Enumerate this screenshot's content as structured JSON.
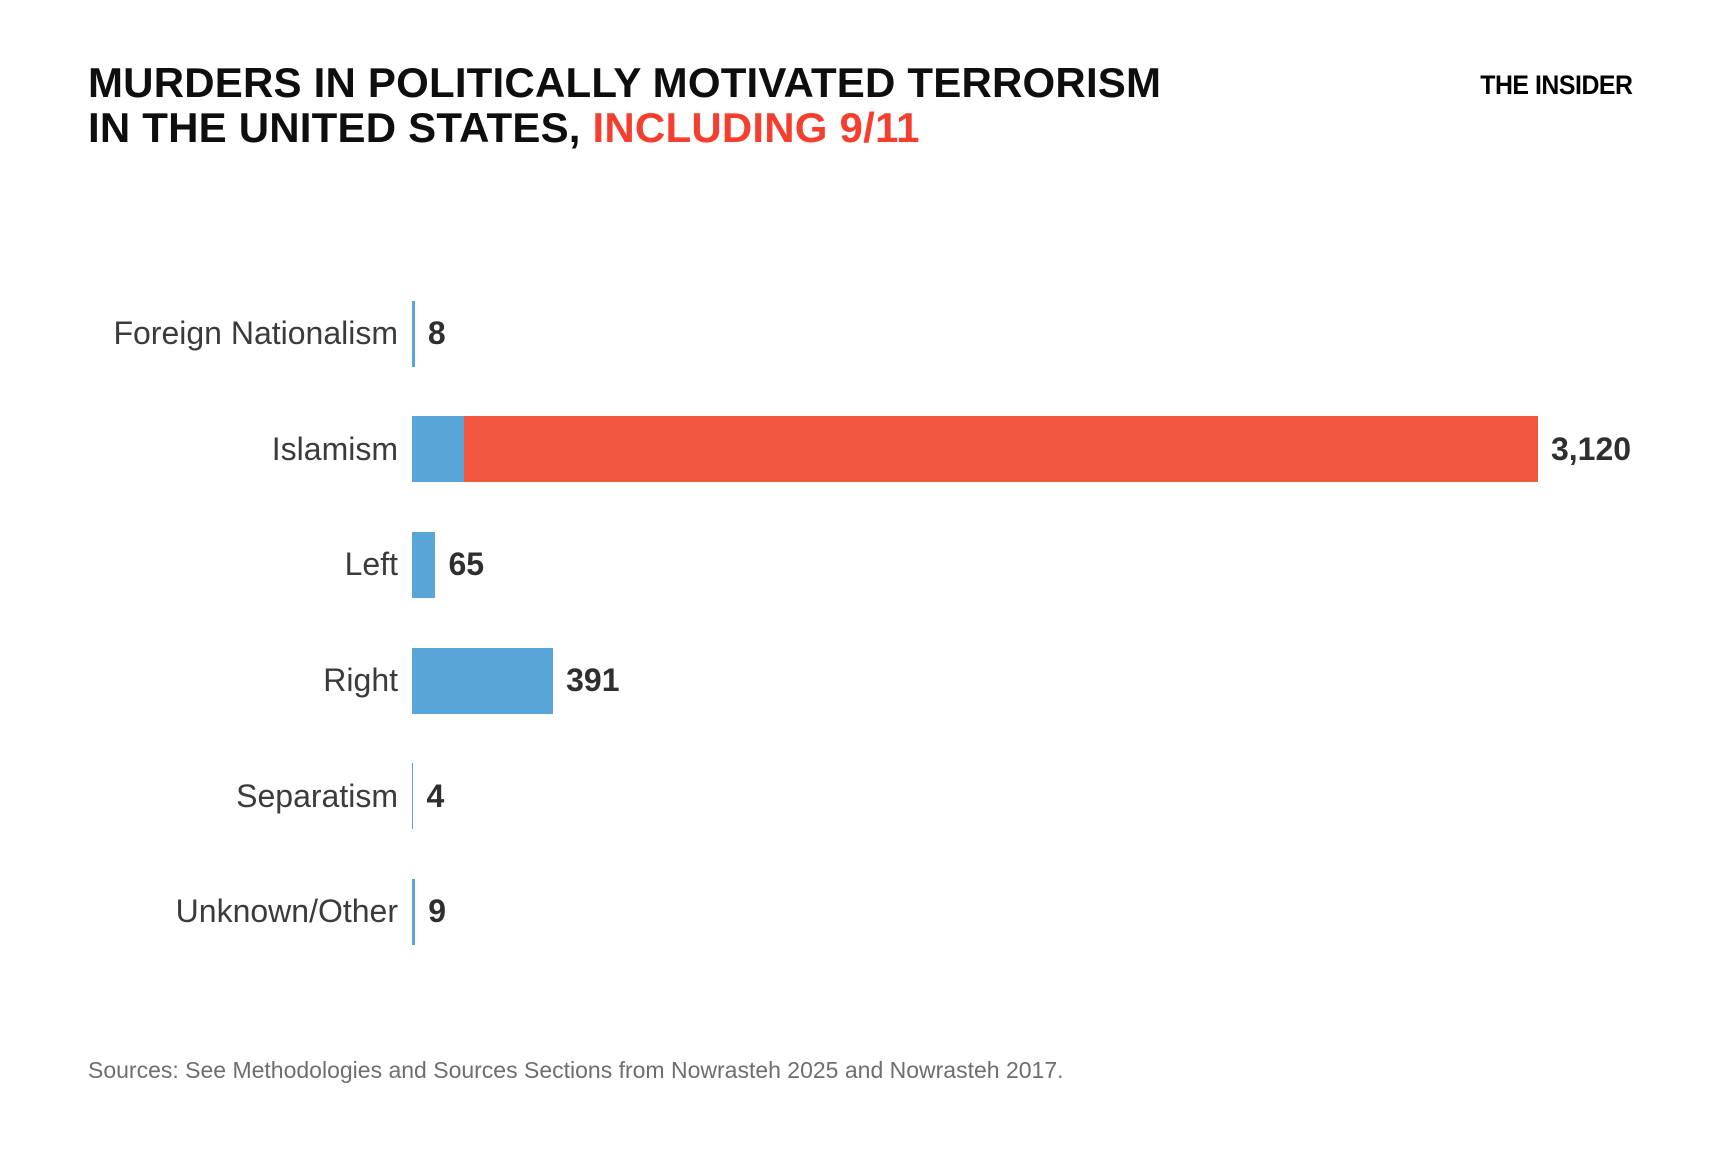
{
  "header": {
    "title_line1": "MURDERS IN POLITICALLY MOTIVATED TERRORISM",
    "title_line2_black": "IN THE UNITED STATES, ",
    "title_line2_red": "INCLUDING 9/11",
    "brand": "THE INSIDER"
  },
  "colors": {
    "bar_blue": "#58a6d8",
    "bar_red": "#f0573e",
    "title_red": "#f53e2d",
    "label_gray": "#3b3b3b",
    "value_gray": "#2f2f2f",
    "source_gray": "#6e6e6e",
    "background": "#ffffff"
  },
  "chart_data": {
    "type": "bar",
    "orientation": "horizontal",
    "title": "Murders in politically motivated terrorism in the United States, including 9/11",
    "xlabel": "",
    "ylabel": "",
    "xlim": [
      0,
      3120
    ],
    "grid": false,
    "legend": "none",
    "categories": [
      "Foreign Nationalism",
      "Islamism",
      "Left",
      "Right",
      "Separatism",
      "Unknown/Other"
    ],
    "values": [
      8,
      3120,
      65,
      391,
      4,
      9
    ],
    "value_labels": [
      "8",
      "3,120",
      "65",
      "391",
      "4",
      "9"
    ],
    "rows": [
      {
        "category": "Foreign Nationalism",
        "value": 8,
        "value_label": "8",
        "segments": [
          {
            "color": "blue",
            "value": 8
          }
        ]
      },
      {
        "category": "Islamism",
        "value": 3120,
        "value_label": "3,120",
        "segments": [
          {
            "color": "blue",
            "value": 143
          },
          {
            "color": "red",
            "value": 2977
          }
        ]
      },
      {
        "category": "Left",
        "value": 65,
        "value_label": "65",
        "segments": [
          {
            "color": "blue",
            "value": 65
          }
        ]
      },
      {
        "category": "Right",
        "value": 391,
        "value_label": "391",
        "segments": [
          {
            "color": "blue",
            "value": 391
          }
        ]
      },
      {
        "category": "Separatism",
        "value": 4,
        "value_label": "4",
        "segments": [
          {
            "color": "blue",
            "value": 4
          }
        ]
      },
      {
        "category": "Unknown/Other",
        "value": 9,
        "value_label": "9",
        "segments": [
          {
            "color": "blue",
            "value": 9
          }
        ]
      }
    ]
  },
  "footer": {
    "sources": "Sources: See Methodologies and Sources Sections from Nowrasteh 2025 and Nowrasteh 2017."
  }
}
